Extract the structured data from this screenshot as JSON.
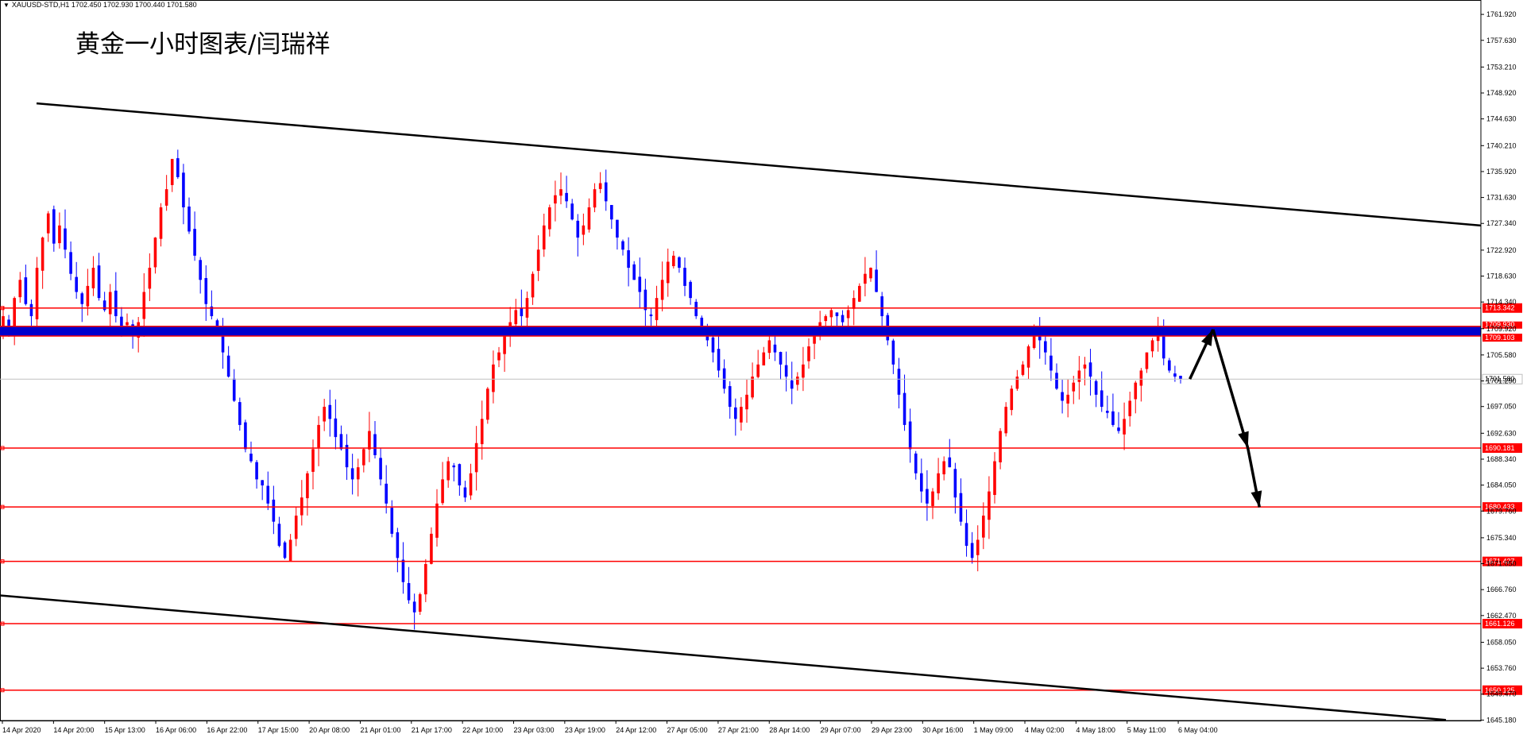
{
  "window": {
    "symbol_info": "XAUUSD-STD,H1  1702.450 1702.930 1700.440 1701.580",
    "overlay_title": "黄金一小时图表/闫瑞祥"
  },
  "colors": {
    "bull": "#ff0000",
    "bear": "#0000ff",
    "level": "#ff0000",
    "trend": "#000000",
    "zone": "#0000cc",
    "axis": "#000000"
  },
  "chart_data": {
    "type": "candlestick",
    "title": "",
    "xlabel": "",
    "ylabel": "",
    "ylim": [
      1645.1,
      1764.3
    ],
    "y_ticks": [
      "1761.920",
      "1757.630",
      "1753.210",
      "1748.920",
      "1744.630",
      "1740.210",
      "1735.920",
      "1731.630",
      "1727.340",
      "1722.920",
      "1718.630",
      "1714.340",
      "1709.920",
      "1705.580",
      "1701.290",
      "1697.050",
      "1692.630",
      "1688.340",
      "1684.050",
      "1679.760",
      "1675.340",
      "1671.050",
      "1666.760",
      "1662.470",
      "1658.050",
      "1653.760",
      "1649.470",
      "1645.180"
    ],
    "x_ticks": [
      "14 Apr 2020",
      "14 Apr 20:00",
      "15 Apr 13:00",
      "16 Apr 06:00",
      "16 Apr 22:00",
      "17 Apr 15:00",
      "20 Apr 08:00",
      "21 Apr 01:00",
      "21 Apr 17:00",
      "22 Apr 10:00",
      "23 Apr 03:00",
      "23 Apr 19:00",
      "24 Apr 12:00",
      "27 Apr 05:00",
      "27 Apr 21:00",
      "28 Apr 14:00",
      "29 Apr 07:00",
      "29 Apr 23:00",
      "30 Apr 16:00",
      "1 May 09:00",
      "4 May 02:00",
      "4 May 18:00",
      "5 May 11:00",
      "6 May 04:00"
    ],
    "current_price": "1701.580",
    "horizontal_levels": [
      {
        "value": 1713.342,
        "label": "1713.342"
      },
      {
        "value": 1690.181,
        "label": "1690.181"
      },
      {
        "value": 1680.433,
        "label": "1680.433"
      },
      {
        "value": 1671.427,
        "label": "1671.427"
      },
      {
        "value": 1661.126,
        "label": "1661.126"
      },
      {
        "value": 1650.125,
        "label": "1650.125"
      }
    ],
    "resistance_zone": {
      "upper": 1709.93,
      "lower": 1709.103,
      "upper_label": "1709.930",
      "lower_label": "1709.103"
    },
    "channel": {
      "upper": {
        "from": [
          "14 Apr 20:00",
          1747.2
        ],
        "to": [
          "6 May 20:00",
          1727.0
        ]
      },
      "lower": {
        "from": [
          "14 Apr 2020",
          1665.8
        ],
        "to": [
          "6 May 20:00",
          1645.2
        ]
      }
    },
    "forecast_path": [
      [
        "6 May 05:00",
        1701.6
      ],
      [
        "6 May 07:00",
        1709.8
      ],
      [
        "6 May 10:00",
        1690.2
      ],
      [
        "6 May 11:00",
        1680.4
      ]
    ],
    "series": [
      {
        "candles_close": [
          1712,
          1710,
          1715,
          1718,
          1714,
          1712,
          1720,
          1725,
          1729,
          1724,
          1727,
          1723,
          1719,
          1716,
          1714,
          1717,
          1720,
          1715,
          1713,
          1716,
          1712,
          1710,
          1711,
          1709,
          1711,
          1716,
          1720,
          1725,
          1730,
          1733,
          1738,
          1735,
          1730,
          1726,
          1722,
          1718,
          1714,
          1712,
          1709,
          1706,
          1702,
          1698,
          1694,
          1690,
          1688,
          1685,
          1684,
          1681,
          1678,
          1674,
          1672,
          1675,
          1679,
          1682,
          1686,
          1690,
          1694,
          1697,
          1695,
          1692,
          1690,
          1687,
          1685,
          1687,
          1690,
          1693,
          1689,
          1685,
          1681,
          1676,
          1672,
          1668,
          1665,
          1663,
          1666,
          1671,
          1676,
          1681,
          1685,
          1688,
          1687,
          1684,
          1682,
          1686,
          1691,
          1695,
          1700,
          1704,
          1706,
          1709,
          1711,
          1713,
          1712,
          1715,
          1719,
          1723,
          1727,
          1730,
          1732,
          1733,
          1731,
          1728,
          1725,
          1727,
          1730,
          1733,
          1734,
          1731,
          1728,
          1725,
          1723,
          1720,
          1718,
          1716,
          1713,
          1712,
          1715,
          1718,
          1721,
          1722,
          1720,
          1717,
          1715,
          1712,
          1710,
          1708,
          1706,
          1703,
          1700,
          1697,
          1695,
          1697,
          1699,
          1702,
          1704,
          1706,
          1708,
          1706,
          1704,
          1702,
          1700,
          1702,
          1704,
          1707,
          1709,
          1711,
          1712,
          1713,
          1712,
          1711,
          1713,
          1715,
          1717,
          1719,
          1720,
          1716,
          1712,
          1708,
          1704,
          1699,
          1694,
          1690,
          1686,
          1683,
          1681,
          1683,
          1686,
          1688,
          1687,
          1682,
          1678,
          1674,
          1672,
          1675,
          1679,
          1683,
          1688,
          1693,
          1697,
          1700,
          1702,
          1704,
          1707,
          1709,
          1708,
          1706,
          1703,
          1700,
          1698,
          1699,
          1701,
          1703,
          1704,
          1702,
          1699,
          1697,
          1696,
          1694,
          1693,
          1695,
          1698,
          1701,
          1703,
          1706,
          1708,
          1709,
          1705,
          1703,
          1702,
          1701.58
        ]
      }
    ]
  }
}
